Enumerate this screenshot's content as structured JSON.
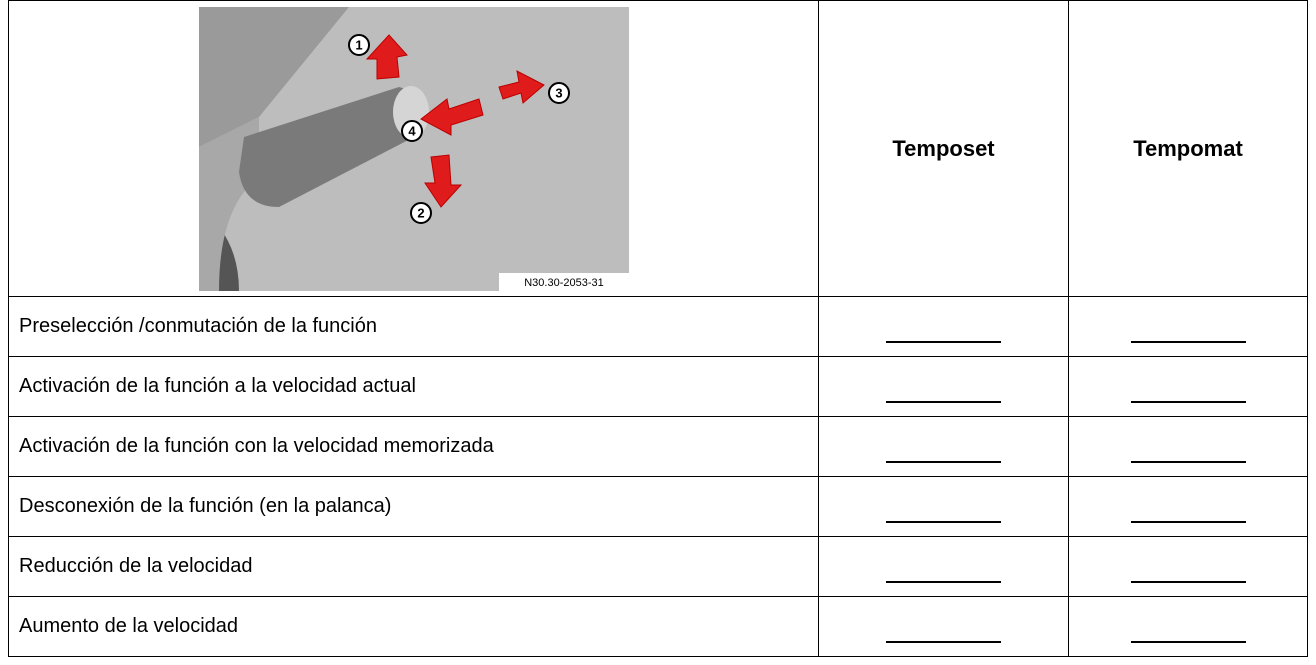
{
  "header": {
    "image": {
      "labels": [
        "1",
        "2",
        "3",
        "4"
      ],
      "caption": "N30.30-2053-31"
    },
    "columns": [
      "Temposet",
      "Tempomat"
    ]
  },
  "table": {
    "rows": [
      "Preselección /conmutación de la función",
      "Activación de la función a la velocidad actual",
      "Activación de la función con la velocidad memorizada",
      "Desconexión de la función (en la palanca)",
      "Reducción de la velocidad",
      "Aumento de la velocidad"
    ]
  }
}
